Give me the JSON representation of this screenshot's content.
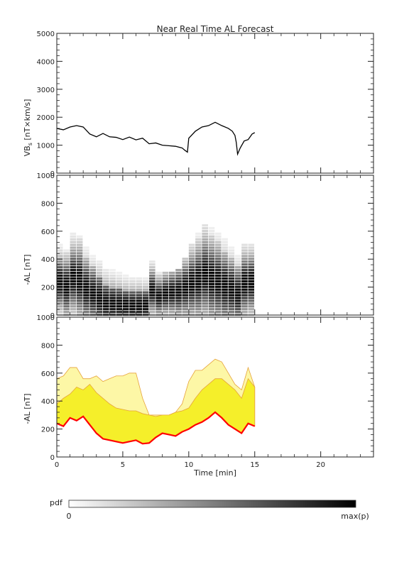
{
  "title": "Near Real Time AL Forecast",
  "colors": {
    "axis": "#222222",
    "vbs_line": "#000000",
    "median_line": "#ff0000",
    "band_inner": "#f5ef2a",
    "band_outer": "#fdf7a6",
    "band_edge": "#e6a23a"
  },
  "colorbar": {
    "label": "pdf",
    "min_label": "0",
    "max_label": "max(p)"
  },
  "chart_data": [
    {
      "id": "vbs",
      "type": "line",
      "ylabel_main": "VB",
      "ylabel_sub": "s",
      "ylabel_rest": " [nT×km/s]",
      "ylim": [
        0,
        5000
      ],
      "xlim": [
        0,
        24
      ],
      "yticks": [
        "0",
        "1000",
        "2000",
        "3000",
        "4000",
        "5000"
      ],
      "x": [
        0.0,
        0.5,
        1.0,
        1.5,
        2.0,
        2.5,
        3.0,
        3.5,
        4.0,
        4.5,
        5.0,
        5.5,
        6.0,
        6.5,
        7.0,
        7.5,
        8.0,
        8.5,
        9.0,
        9.5,
        9.7,
        9.9,
        10.0,
        10.5,
        11.0,
        11.5,
        12.0,
        12.5,
        13.0,
        13.3,
        13.5,
        13.6,
        13.7,
        13.9,
        14.2,
        14.5,
        14.8,
        15.0
      ],
      "values": [
        1600,
        1550,
        1650,
        1700,
        1650,
        1400,
        1300,
        1420,
        1300,
        1280,
        1200,
        1290,
        1190,
        1250,
        1050,
        1080,
        1000,
        980,
        960,
        900,
        820,
        750,
        1250,
        1500,
        1650,
        1700,
        1820,
        1700,
        1600,
        1500,
        1350,
        1100,
        680,
        900,
        1150,
        1200,
        1400,
        1450
      ]
    },
    {
      "id": "pdf",
      "type": "heatmap",
      "ylabel": "-AL [nT]",
      "ylim": [
        0,
        1000
      ],
      "xlim": [
        0,
        24
      ],
      "yticks": [
        "0",
        "200",
        "400",
        "600",
        "800",
        "1000"
      ],
      "x": [
        0.5,
        1.0,
        1.5,
        2.0,
        2.5,
        3.0,
        3.5,
        4.0,
        4.5,
        5.0,
        5.5,
        6.0,
        6.5,
        7.0,
        7.5,
        8.0,
        8.5,
        9.0,
        9.5,
        10.0,
        10.5,
        11.0,
        11.5,
        12.0,
        12.5,
        13.0,
        13.5,
        14.0,
        14.5,
        15.0
      ],
      "median": [
        230,
        200,
        260,
        240,
        180,
        150,
        120,
        90,
        85,
        80,
        75,
        70,
        70,
        75,
        170,
        130,
        150,
        160,
        165,
        190,
        220,
        240,
        280,
        250,
        230,
        200,
        180,
        150,
        220,
        230
      ],
      "spread": [
        180,
        200,
        220,
        240,
        220,
        200,
        200,
        180,
        170,
        160,
        150,
        150,
        150,
        140,
        150,
        130,
        140,
        150,
        170,
        190,
        220,
        250,
        270,
        270,
        260,
        250,
        220,
        200,
        210,
        200
      ],
      "max_al": [
        500,
        600,
        600,
        650,
        600,
        560,
        560,
        550,
        520,
        520,
        500,
        480,
        460,
        460,
        380,
        300,
        300,
        300,
        320,
        400,
        500,
        600,
        650,
        700,
        650,
        600,
        500,
        450,
        600,
        500
      ]
    },
    {
      "id": "band",
      "type": "area",
      "ylabel": "-AL [nT]",
      "ylim": [
        0,
        1000
      ],
      "xlim": [
        0,
        24
      ],
      "xlabel": "Time [min]",
      "xticks": [
        "0",
        "5",
        "10",
        "15",
        "20"
      ],
      "yticks": [
        "0",
        "200",
        "400",
        "600",
        "800",
        "1000"
      ],
      "x": [
        0.0,
        0.5,
        1.0,
        1.5,
        2.0,
        2.5,
        3.0,
        3.5,
        4.0,
        4.5,
        5.0,
        5.5,
        6.0,
        6.5,
        7.0,
        7.5,
        8.0,
        8.5,
        9.0,
        9.5,
        10.0,
        10.5,
        11.0,
        11.5,
        12.0,
        12.5,
        13.0,
        13.5,
        14.0,
        14.5,
        15.0
      ],
      "median": [
        240,
        220,
        280,
        260,
        290,
        230,
        170,
        130,
        120,
        110,
        100,
        110,
        120,
        95,
        100,
        140,
        170,
        160,
        150,
        180,
        200,
        230,
        250,
        280,
        320,
        280,
        230,
        200,
        170,
        240,
        220
      ],
      "inner_upper": [
        380,
        420,
        450,
        500,
        480,
        520,
        460,
        420,
        380,
        350,
        340,
        330,
        330,
        310,
        300,
        290,
        300,
        300,
        320,
        330,
        350,
        420,
        480,
        520,
        560,
        560,
        520,
        480,
        420,
        560,
        500
      ],
      "outer_upper": [
        560,
        580,
        640,
        640,
        560,
        560,
        580,
        540,
        560,
        580,
        580,
        600,
        600,
        420,
        300,
        300,
        300,
        300,
        320,
        380,
        540,
        620,
        620,
        660,
        700,
        680,
        600,
        520,
        480,
        640,
        500
      ]
    }
  ]
}
